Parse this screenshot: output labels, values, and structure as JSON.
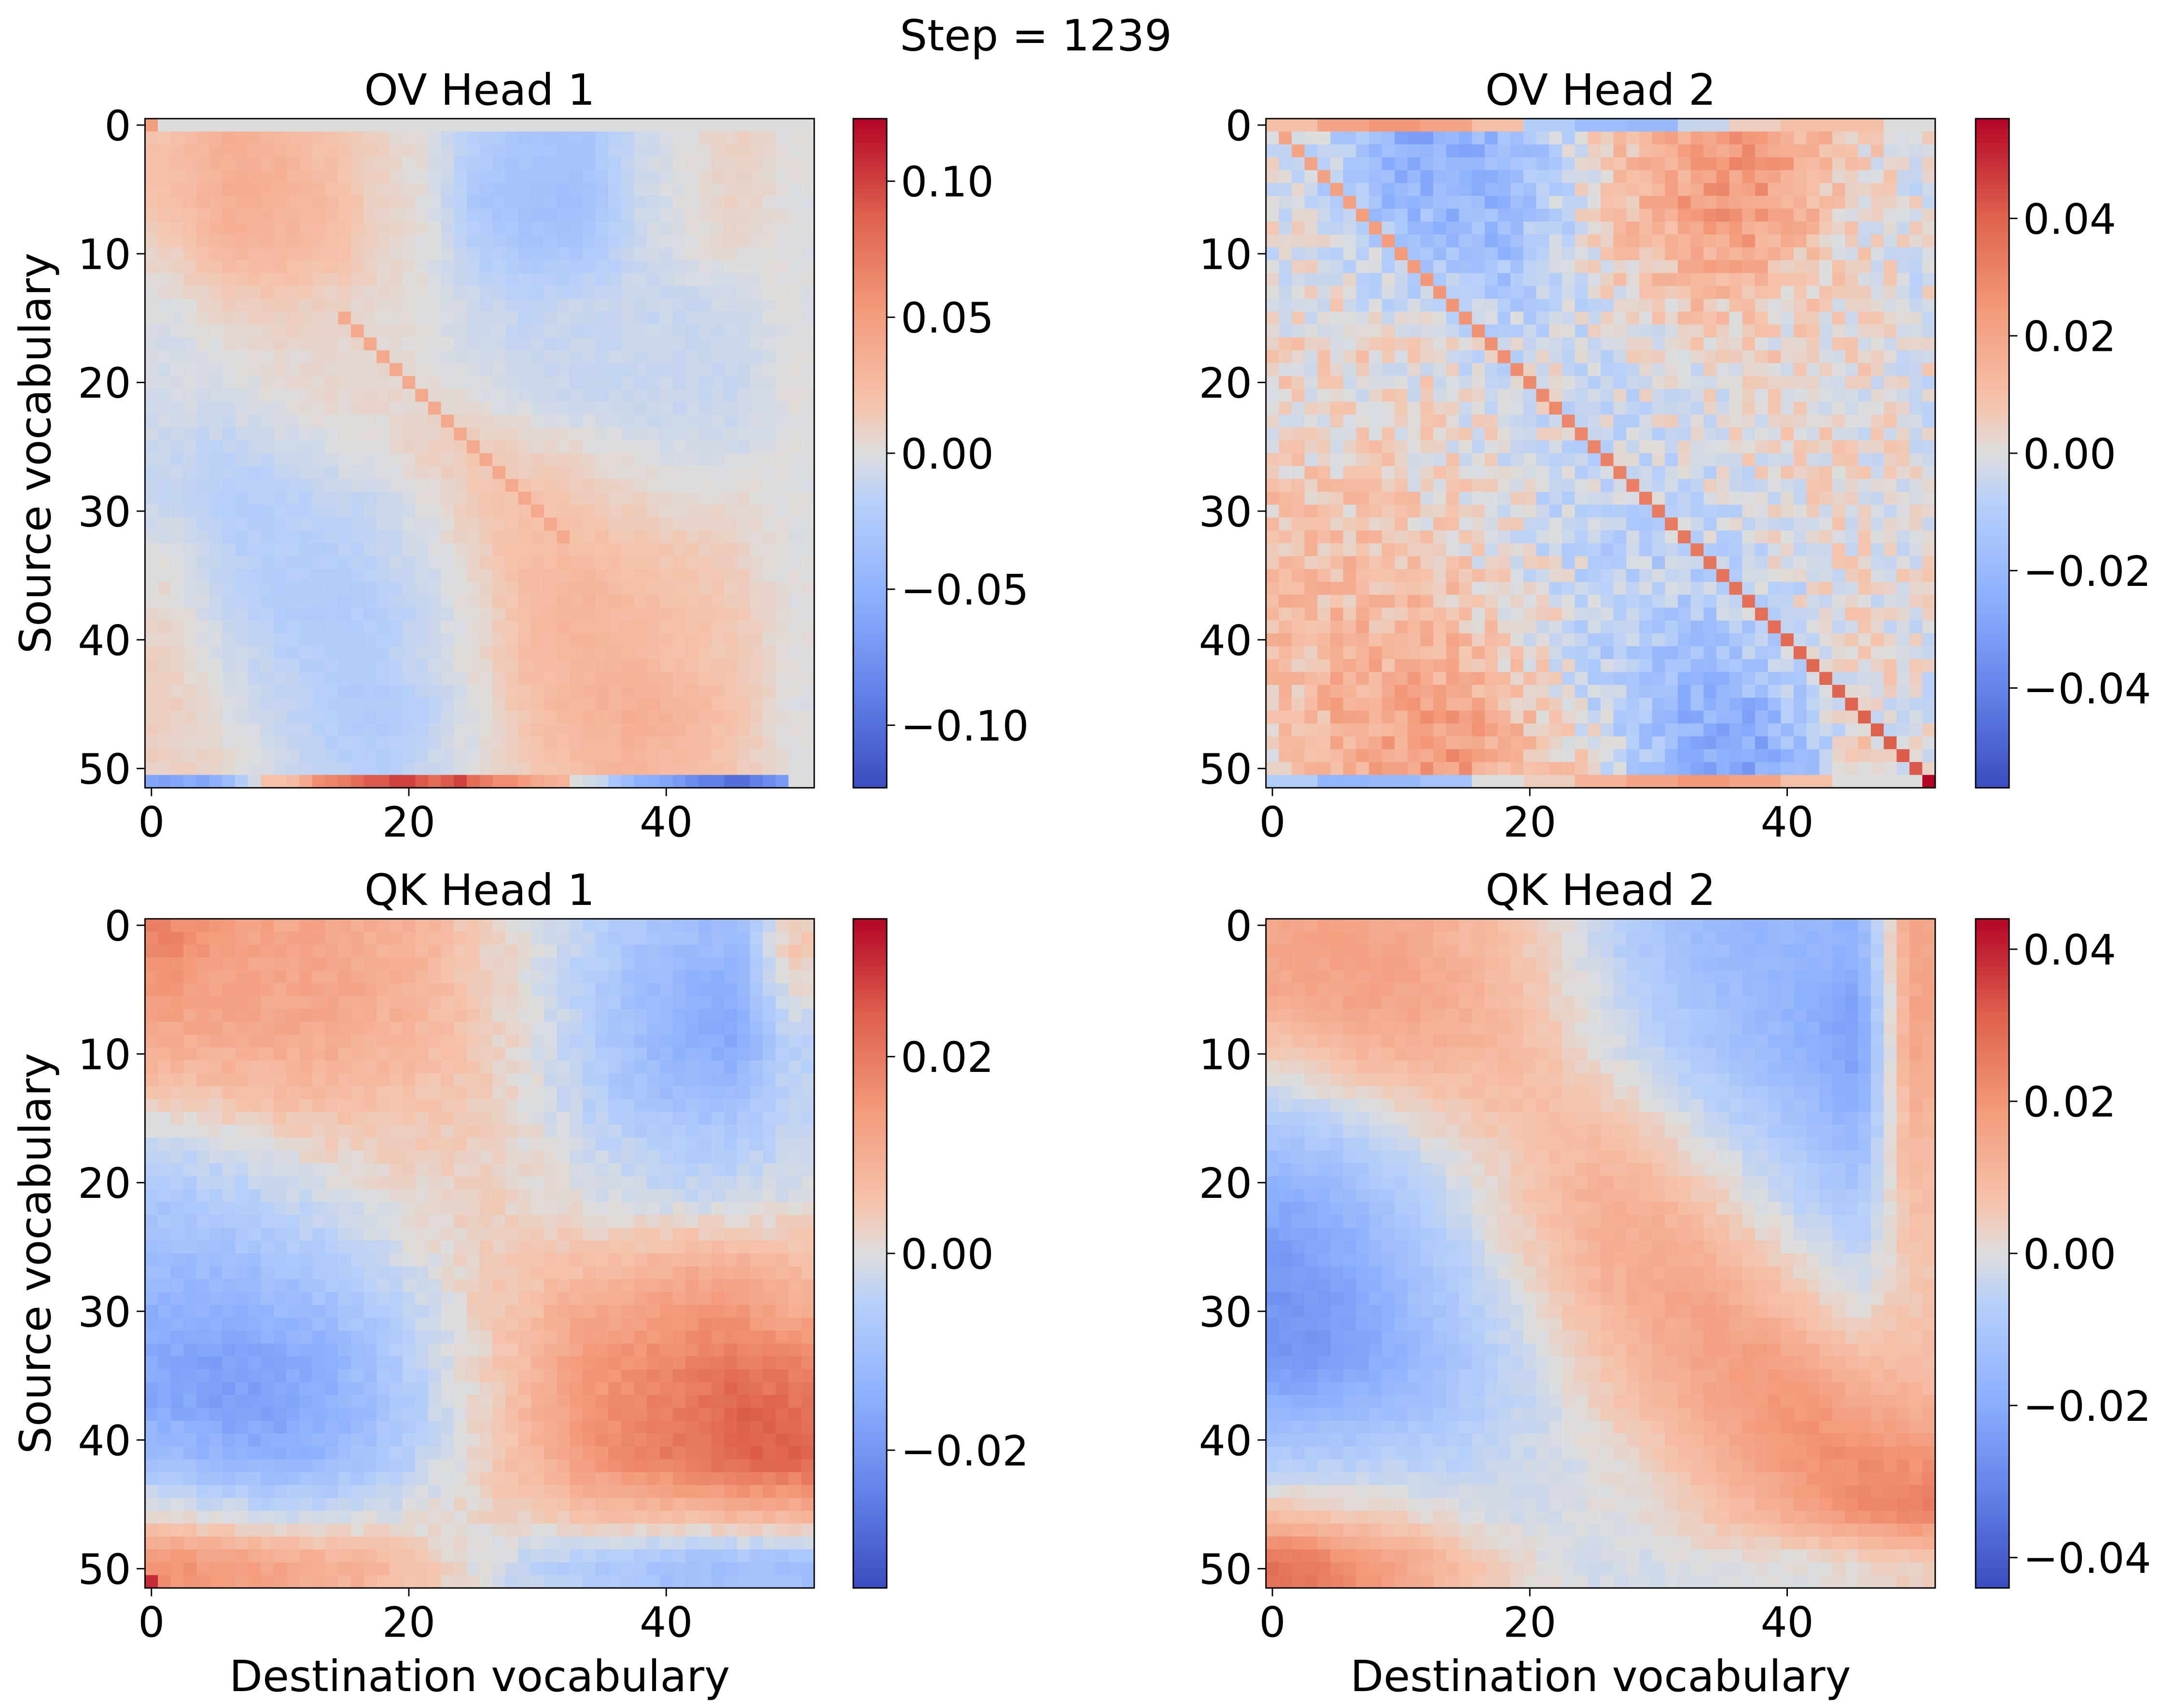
{
  "suptitle": "Step = 1239",
  "chart_data": [
    {
      "type": "heatmap",
      "title": "OV Head 1",
      "xlabel": "",
      "ylabel": "Source vocabulary",
      "rows": 52,
      "cols": 52,
      "xticks": [
        0,
        20,
        40
      ],
      "yticks": [
        0,
        10,
        20,
        30,
        40,
        50
      ],
      "colorbar": {
        "vmin": -0.123,
        "vmax": 0.123,
        "ticks": [
          0.1,
          0.05,
          0.0,
          -0.05,
          -0.1
        ],
        "tick_labels": [
          "0.10",
          "0.05",
          "0.00",
          "−0.05",
          "−0.10"
        ]
      },
      "block_size": 4,
      "block_values": [
        [
          0.02,
          0.035,
          0.03,
          0.02,
          0.01,
          0,
          -0.02,
          -0.03,
          -0.03,
          -0.01,
          0,
          0.01,
          0
        ],
        [
          0.02,
          0.035,
          0.035,
          0.025,
          0.01,
          0,
          -0.03,
          -0.035,
          -0.035,
          -0.01,
          0,
          0.01,
          0
        ],
        [
          0.01,
          0.03,
          0.03,
          0.025,
          0.01,
          0,
          -0.02,
          -0.03,
          -0.03,
          -0.01,
          0,
          0.005,
          0
        ],
        [
          0,
          0.01,
          0.015,
          0.01,
          0.005,
          0,
          -0.01,
          -0.015,
          -0.01,
          -0.01,
          -0.01,
          -0.005,
          0
        ],
        [
          -0.005,
          0,
          0.005,
          0.005,
          0.005,
          0,
          -0.005,
          -0.01,
          -0.01,
          -0.01,
          -0.01,
          -0.01,
          0
        ],
        [
          -0.005,
          -0.005,
          0,
          0.005,
          0.005,
          0.005,
          0,
          -0.005,
          -0.01,
          -0.01,
          -0.01,
          -0.01,
          0
        ],
        [
          -0.01,
          -0.015,
          -0.01,
          -0.005,
          0,
          0.01,
          0.015,
          0.01,
          0.005,
          0,
          -0.005,
          -0.005,
          0
        ],
        [
          -0.01,
          -0.02,
          -0.02,
          -0.015,
          -0.01,
          0,
          0.015,
          0.02,
          0.015,
          0.01,
          0.005,
          0.005,
          0
        ],
        [
          0,
          -0.015,
          -0.02,
          -0.02,
          -0.015,
          -0.005,
          0.01,
          0.025,
          0.025,
          0.02,
          0.015,
          0.01,
          0
        ],
        [
          0.005,
          -0.01,
          -0.02,
          -0.025,
          -0.02,
          -0.01,
          0.005,
          0.025,
          0.03,
          0.025,
          0.02,
          0.015,
          0
        ],
        [
          0.01,
          -0.005,
          -0.015,
          -0.02,
          -0.02,
          -0.01,
          0.005,
          0.025,
          0.03,
          0.03,
          0.02,
          0.015,
          0
        ],
        [
          0.01,
          0,
          -0.01,
          -0.02,
          -0.025,
          -0.015,
          0,
          0.02,
          0.03,
          0.035,
          0.03,
          0.02,
          0
        ],
        [
          0.01,
          0.005,
          -0.005,
          -0.015,
          -0.02,
          -0.01,
          0,
          0.015,
          0.025,
          0.03,
          0.025,
          0.015,
          0
        ]
      ],
      "row_overrides": {
        "0": [
          0.05,
          0,
          0,
          0,
          0,
          0,
          0,
          0,
          0,
          0,
          0,
          0,
          0,
          0,
          0,
          0,
          0,
          0,
          0,
          0,
          0,
          0,
          0,
          0,
          0,
          0,
          0,
          0,
          0,
          0,
          0,
          0,
          0,
          0,
          0,
          0,
          0,
          0,
          0,
          0,
          0,
          0,
          0,
          0,
          0,
          0,
          0,
          0,
          0,
          0,
          0,
          0
        ],
        "51": [
          -0.06,
          -0.065,
          -0.06,
          -0.055,
          -0.06,
          -0.05,
          -0.04,
          -0.02,
          -0.005,
          0.02,
          0.02,
          0.025,
          0.04,
          0.06,
          0.065,
          0.07,
          0.08,
          0.09,
          0.09,
          0.1,
          0.1,
          0.09,
          0.08,
          0.09,
          0.1,
          0.08,
          0.07,
          0.06,
          0.06,
          0.05,
          0.04,
          0.035,
          0.03,
          0,
          -0.005,
          -0.01,
          -0.03,
          -0.04,
          -0.05,
          -0.055,
          -0.06,
          -0.07,
          -0.08,
          -0.09,
          -0.09,
          -0.1,
          -0.1,
          -0.09,
          -0.08,
          -0.07,
          0,
          0
        ]
      },
      "diagonal": {
        "start": 15,
        "end": 32,
        "from": 0.04,
        "to": 0.04
      },
      "point_overrides": [],
      "noise": 0.003
    },
    {
      "type": "heatmap",
      "title": "OV Head 2",
      "xlabel": "",
      "ylabel": "",
      "rows": 52,
      "cols": 52,
      "xticks": [
        0,
        20,
        40
      ],
      "yticks": [
        0,
        10,
        20,
        30,
        40,
        50
      ],
      "colorbar": {
        "vmin": -0.057,
        "vmax": 0.057,
        "ticks": [
          0.04,
          0.02,
          0.0,
          -0.02,
          -0.04
        ],
        "tick_labels": [
          "0.04",
          "0.02",
          "0.00",
          "−0.02",
          "−0.04"
        ]
      },
      "block_size": 4,
      "block_values": [
        [
          0,
          -0.01,
          -0.025,
          -0.025,
          -0.02,
          -0.01,
          0.005,
          0.015,
          0.02,
          0.025,
          0.015,
          0.005,
          0
        ],
        [
          0,
          -0.01,
          -0.02,
          -0.025,
          -0.02,
          -0.01,
          0.005,
          0.015,
          0.025,
          0.025,
          0.015,
          0.005,
          0
        ],
        [
          0,
          -0.005,
          -0.01,
          -0.015,
          -0.02,
          -0.01,
          0.005,
          0.012,
          0.02,
          0.02,
          0.01,
          0.003,
          0
        ],
        [
          0,
          0,
          -0.005,
          -0.005,
          -0.01,
          -0.008,
          0,
          0.005,
          0.01,
          0.008,
          0.005,
          0.002,
          0
        ],
        [
          0.005,
          0.005,
          0.002,
          0,
          -0.003,
          -0.003,
          -0.002,
          0,
          0.003,
          0.003,
          0.003,
          0.002,
          0
        ],
        [
          0.003,
          0.003,
          0.003,
          0.002,
          0,
          -0.002,
          -0.003,
          -0.002,
          0,
          0.003,
          0.003,
          0.002,
          0
        ],
        [
          0.005,
          0.005,
          0.005,
          0.003,
          0,
          -0.003,
          -0.005,
          -0.005,
          -0.002,
          0,
          0.003,
          0.003,
          0
        ],
        [
          0.008,
          0.008,
          0.007,
          0.004,
          0,
          -0.003,
          -0.006,
          -0.006,
          -0.004,
          0,
          0.002,
          0.003,
          0
        ],
        [
          0.01,
          0.01,
          0.008,
          0.006,
          0.002,
          -0.002,
          -0.007,
          -0.008,
          -0.006,
          -0.003,
          0,
          0.002,
          0
        ],
        [
          0.012,
          0.012,
          0.012,
          0.01,
          0.004,
          0,
          -0.007,
          -0.01,
          -0.01,
          -0.006,
          -0.002,
          0.002,
          0
        ],
        [
          0.01,
          0.015,
          0.015,
          0.015,
          0.008,
          0,
          -0.008,
          -0.014,
          -0.016,
          -0.012,
          -0.004,
          0.003,
          0
        ],
        [
          0.008,
          0.018,
          0.02,
          0.022,
          0.015,
          0.005,
          -0.006,
          -0.016,
          -0.025,
          -0.022,
          -0.01,
          0.004,
          0
        ],
        [
          0.005,
          0.015,
          0.02,
          0.025,
          0.018,
          0.008,
          0,
          -0.012,
          -0.028,
          -0.03,
          -0.015,
          0.006,
          0
        ]
      ],
      "row_overrides": {
        "0": [
          0.01,
          0.02,
          0.025,
          0.02,
          0.01,
          -0.01,
          -0.018,
          -0.02,
          -0.005,
          0.005,
          0.01,
          0.01,
          0
        ],
        "51": [
          -0.01,
          -0.022,
          -0.02,
          -0.015,
          0,
          0.005,
          0.015,
          0.02,
          0.025,
          0.02,
          0.01,
          0,
          0
        ]
      },
      "diagonal": {
        "start": 1,
        "end": 50,
        "from": 0.02,
        "to": 0.042
      },
      "point_overrides": [
        [
          51,
          51,
          0.057
        ]
      ],
      "noise": 0.008
    },
    {
      "type": "heatmap",
      "title": "QK Head 1",
      "xlabel": "Destination vocabulary",
      "ylabel": "Source vocabulary",
      "rows": 52,
      "cols": 52,
      "xticks": [
        0,
        20,
        40
      ],
      "yticks": [
        0,
        10,
        20,
        30,
        40,
        50
      ],
      "colorbar": {
        "vmin": -0.034,
        "vmax": 0.034,
        "ticks": [
          0.02,
          0.0,
          -0.02
        ],
        "tick_labels": [
          "0.02",
          "0.00",
          "−0.02"
        ]
      },
      "block_size": 4,
      "block_values": [
        [
          0.018,
          0.014,
          0.012,
          0.012,
          0.01,
          0.008,
          0.003,
          0,
          -0.004,
          -0.008,
          -0.01,
          -0.012,
          0.004
        ],
        [
          0.014,
          0.012,
          0.012,
          0.012,
          0.01,
          0.008,
          0.004,
          0,
          -0.005,
          -0.01,
          -0.014,
          -0.015,
          0
        ],
        [
          0.01,
          0.01,
          0.01,
          0.01,
          0.009,
          0.007,
          0.004,
          0,
          -0.005,
          -0.01,
          -0.014,
          -0.016,
          -0.005
        ],
        [
          0.004,
          0.005,
          0.006,
          0.007,
          0.006,
          0.005,
          0.004,
          0,
          -0.004,
          -0.008,
          -0.01,
          -0.01,
          -0.004
        ],
        [
          -0.004,
          -0.002,
          0,
          0.002,
          0.003,
          0.003,
          0.003,
          0.001,
          -0.002,
          -0.004,
          -0.006,
          -0.006,
          -0.003
        ],
        [
          -0.008,
          -0.006,
          -0.004,
          -0.002,
          0,
          0.002,
          0.003,
          0.002,
          0,
          -0.002,
          -0.002,
          -0.002,
          0
        ],
        [
          -0.01,
          -0.01,
          -0.008,
          -0.006,
          -0.003,
          0,
          0.003,
          0.004,
          0.005,
          0.006,
          0.008,
          0.008,
          0.006
        ],
        [
          -0.014,
          -0.014,
          -0.012,
          -0.01,
          -0.006,
          -0.002,
          0.003,
          0.006,
          0.01,
          0.012,
          0.014,
          0.014,
          0.01
        ],
        [
          -0.016,
          -0.018,
          -0.016,
          -0.014,
          -0.009,
          -0.003,
          0.002,
          0.008,
          0.014,
          0.016,
          0.018,
          0.02,
          0.018
        ],
        [
          -0.016,
          -0.018,
          -0.018,
          -0.015,
          -0.01,
          -0.004,
          0.002,
          0.008,
          0.015,
          0.018,
          0.02,
          0.024,
          0.022
        ],
        [
          -0.01,
          -0.013,
          -0.014,
          -0.012,
          -0.008,
          -0.003,
          0.002,
          0.008,
          0.014,
          0.018,
          0.02,
          0.024,
          0.024
        ],
        [
          0,
          -0.002,
          -0.003,
          -0.003,
          -0.002,
          0,
          0.002,
          0.004,
          0.006,
          0.008,
          0.008,
          0.01,
          0.01
        ],
        [
          0.016,
          0.014,
          0.012,
          0.01,
          0.008,
          0.004,
          0,
          -0.004,
          -0.006,
          -0.008,
          -0.01,
          -0.01,
          -0.01
        ]
      ],
      "row_overrides": {},
      "diagonal": null,
      "point_overrides": [
        [
          51,
          0,
          0.03
        ]
      ],
      "noise": 0.0015
    },
    {
      "type": "heatmap",
      "title": "QK Head 2",
      "xlabel": "Destination vocabulary",
      "ylabel": "",
      "rows": 52,
      "cols": 52,
      "xticks": [
        0,
        20,
        40
      ],
      "yticks": [
        0,
        10,
        20,
        30,
        40,
        50
      ],
      "colorbar": {
        "vmin": -0.044,
        "vmax": 0.044,
        "ticks": [
          0.04,
          0.02,
          0.0,
          -0.02,
          -0.04
        ],
        "tick_labels": [
          "0.04",
          "0.02",
          "0.00",
          "−0.02",
          "−0.04"
        ]
      },
      "block_size": 4,
      "block_values": [
        [
          0.016,
          0.016,
          0.015,
          0.012,
          0.008,
          0.003,
          -0.004,
          -0.01,
          -0.014,
          -0.016,
          -0.016,
          -0.018,
          0.015
        ],
        [
          0.014,
          0.016,
          0.016,
          0.014,
          0.01,
          0.004,
          -0.002,
          -0.008,
          -0.012,
          -0.015,
          -0.018,
          -0.022,
          0.015
        ],
        [
          0.006,
          0.01,
          0.012,
          0.012,
          0.01,
          0.006,
          0,
          -0.005,
          -0.01,
          -0.014,
          -0.018,
          -0.024,
          0.015
        ],
        [
          -0.004,
          0,
          0.004,
          0.006,
          0.008,
          0.008,
          0.005,
          0,
          -0.005,
          -0.01,
          -0.014,
          -0.02,
          0.012
        ],
        [
          -0.012,
          -0.01,
          -0.005,
          0,
          0.004,
          0.008,
          0.01,
          0.006,
          0,
          -0.005,
          -0.01,
          -0.015,
          0.01
        ],
        [
          -0.02,
          -0.016,
          -0.01,
          -0.004,
          0.002,
          0.008,
          0.012,
          0.012,
          0.006,
          0,
          -0.006,
          -0.01,
          0.008
        ],
        [
          -0.024,
          -0.02,
          -0.014,
          -0.008,
          0,
          0.006,
          0.012,
          0.014,
          0.012,
          0.006,
          0,
          -0.005,
          0.006
        ],
        [
          -0.026,
          -0.024,
          -0.016,
          -0.01,
          -0.004,
          0.003,
          0.01,
          0.014,
          0.016,
          0.012,
          0.006,
          0,
          0.006
        ],
        [
          -0.026,
          -0.024,
          -0.018,
          -0.012,
          -0.006,
          0,
          0.006,
          0.012,
          0.016,
          0.018,
          0.014,
          0.008,
          0.008
        ],
        [
          -0.018,
          -0.016,
          -0.014,
          -0.01,
          -0.006,
          -0.002,
          0.004,
          0.008,
          0.014,
          0.018,
          0.02,
          0.016,
          0.012
        ],
        [
          -0.008,
          -0.008,
          -0.006,
          -0.006,
          -0.004,
          -0.002,
          0,
          0.004,
          0.01,
          0.016,
          0.02,
          0.022,
          0.02
        ],
        [
          0.006,
          0.004,
          0.002,
          0,
          -0.002,
          -0.002,
          0,
          0.002,
          0.006,
          0.01,
          0.016,
          0.022,
          0.025
        ],
        [
          0.028,
          0.022,
          0.016,
          0.01,
          0.004,
          0,
          -0.002,
          -0.002,
          0,
          0,
          0,
          0.002,
          0.004
        ]
      ],
      "row_overrides": {},
      "diagonal": null,
      "point_overrides": [],
      "noise": 0.0015
    }
  ]
}
